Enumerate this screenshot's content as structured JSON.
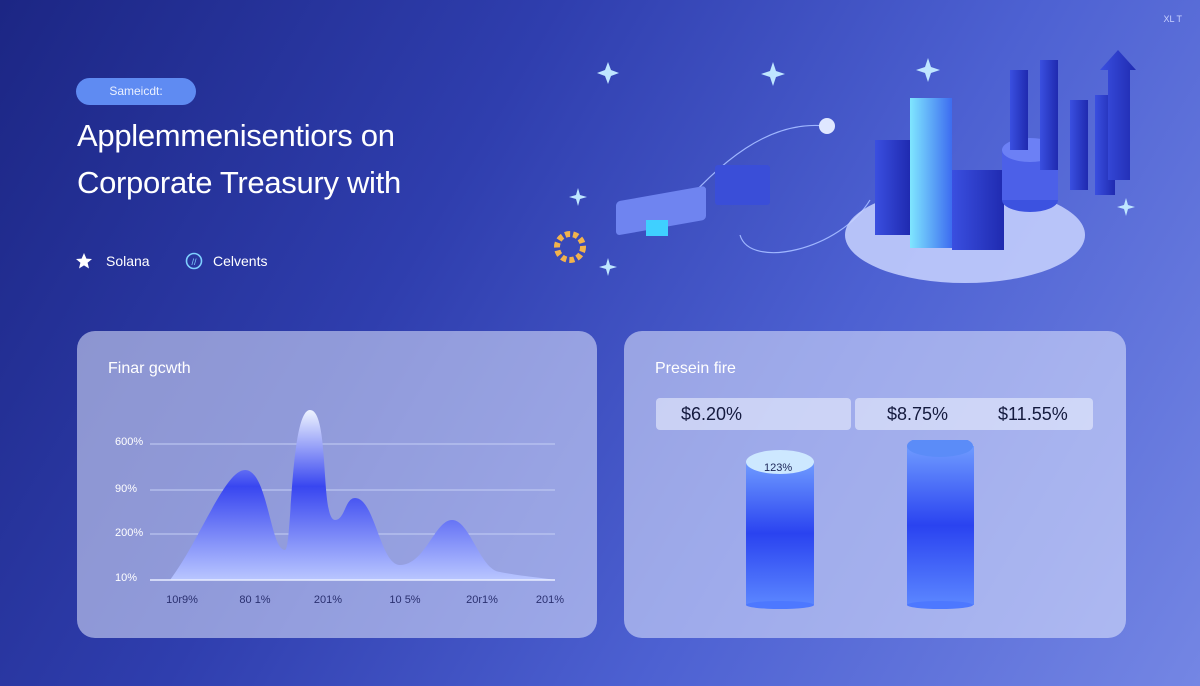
{
  "header": {
    "corner": "XL T",
    "badge": "Sameicdt:",
    "title_lines": [
      "Applemmenisentiors on",
      "Corporate Treasury with"
    ],
    "tags": [
      "Solana",
      "Celvents"
    ]
  },
  "cards": [
    {
      "title": "Finar gcwth",
      "y_labels": [
        "600%",
        "90%",
        "200%",
        "10%"
      ],
      "x_labels": [
        "10r9%",
        "80 1%",
        "201%",
        "10 5%",
        "20r1%",
        "201%"
      ]
    },
    {
      "title": "Presein fire",
      "stats": [
        "$6.20%",
        "$8.75%",
        "$11.55%"
      ],
      "cylinder_label": "123%"
    }
  ]
}
